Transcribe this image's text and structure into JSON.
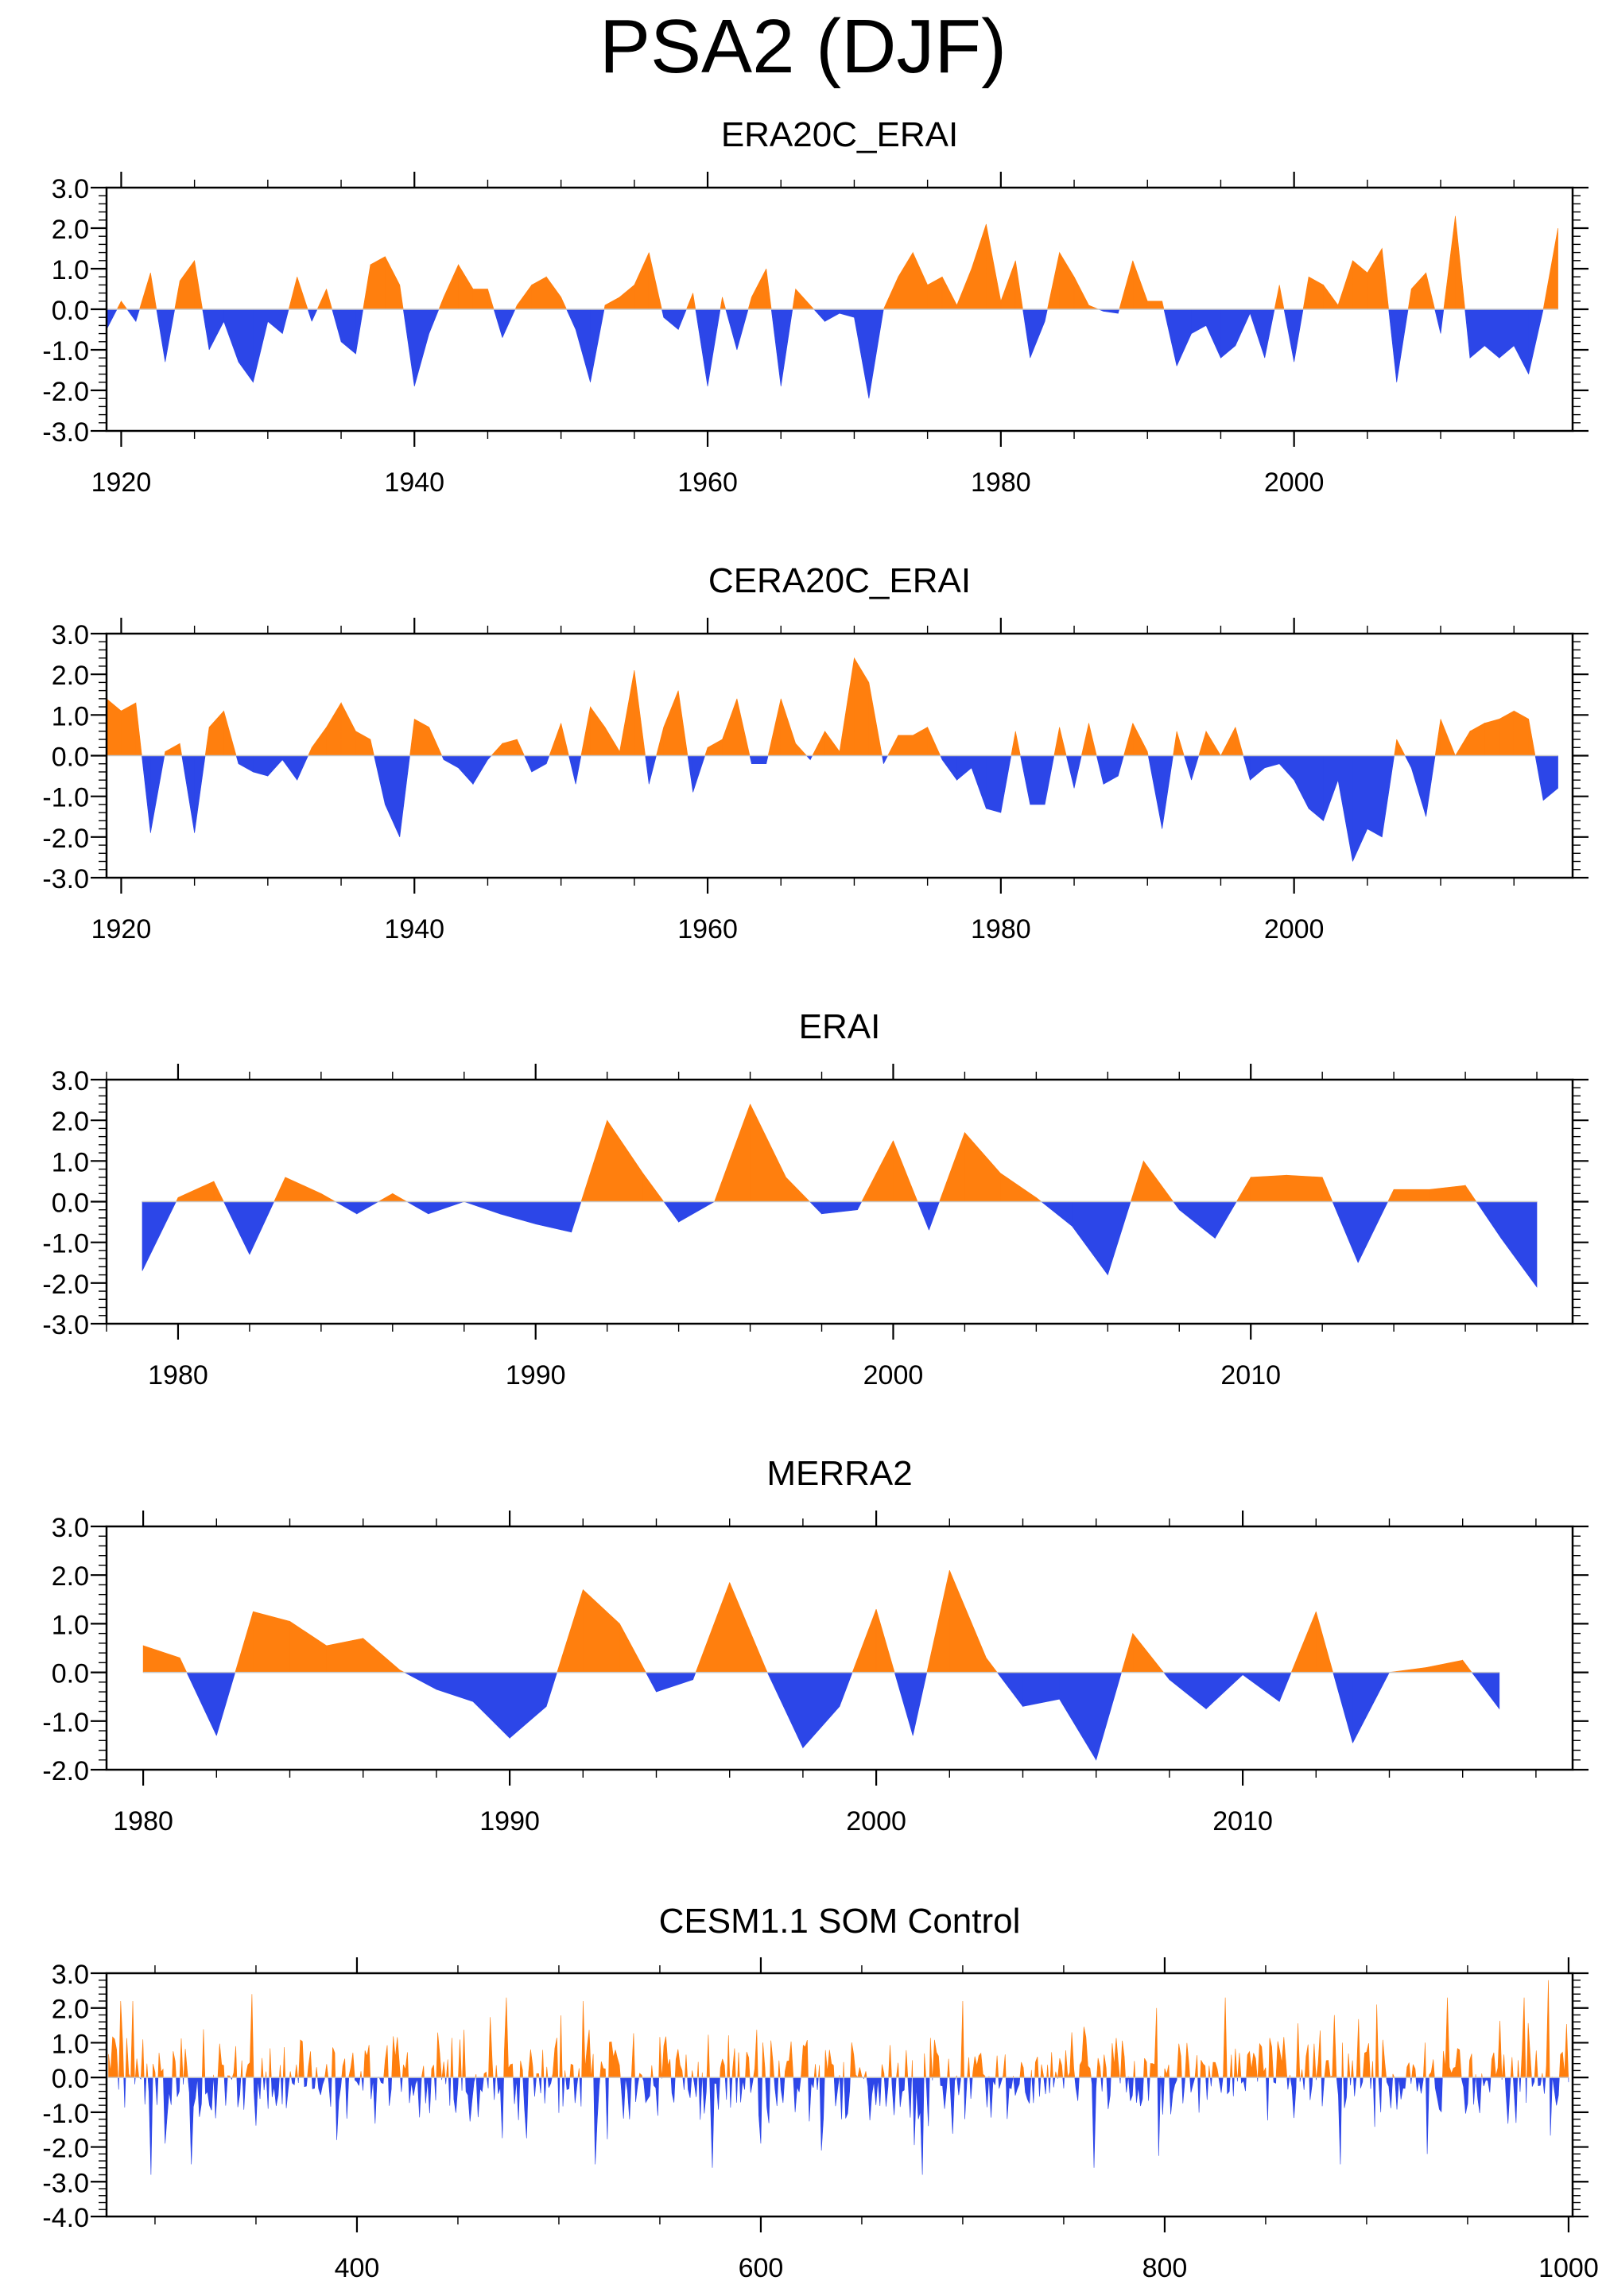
{
  "figure": {
    "title": "PSA2 (DJF)"
  },
  "colors": {
    "positive": "#ff7f0e",
    "negative": "#2c46e8",
    "axis": "#000000"
  },
  "chart_data": [
    {
      "type": "area",
      "title": "ERA20C_ERAI",
      "xlim": [
        1919,
        2019
      ],
      "ylim": [
        -3.0,
        3.0
      ],
      "xticks": [
        1920,
        1940,
        1960,
        1980,
        2000
      ],
      "yticks": [
        -3.0,
        -2.0,
        -1.0,
        0.0,
        1.0,
        2.0,
        3.0
      ],
      "ytick_labels": [
        "-3.0",
        "-2.0",
        "-1.0",
        "0.0",
        "1.0",
        "2.0",
        "3.0"
      ],
      "x": [
        1919,
        1920,
        1921,
        1922,
        1923,
        1924,
        1925,
        1926,
        1927,
        1928,
        1929,
        1930,
        1931,
        1932,
        1933,
        1934,
        1935,
        1936,
        1937,
        1938,
        1939,
        1940,
        1941,
        1942,
        1943,
        1944,
        1945,
        1946,
        1947,
        1948,
        1949,
        1950,
        1951,
        1952,
        1953,
        1954,
        1955,
        1956,
        1957,
        1958,
        1959,
        1960,
        1961,
        1962,
        1963,
        1964,
        1965,
        1966,
        1967,
        1968,
        1969,
        1970,
        1971,
        1972,
        1973,
        1974,
        1975,
        1976,
        1977,
        1978,
        1979,
        1980,
        1981,
        1982,
        1983,
        1984,
        1985,
        1986,
        1987,
        1988,
        1989,
        1990,
        1991,
        1992,
        1993,
        1994,
        1995,
        1996,
        1997,
        1998,
        1999,
        2000,
        2001,
        2002,
        2003,
        2004,
        2005,
        2006,
        2007,
        2008,
        2009,
        2010,
        2011,
        2012,
        2013,
        2014,
        2015,
        2016,
        2017,
        2018
      ],
      "values": [
        -0.5,
        0.2,
        -0.3,
        0.9,
        -1.3,
        0.7,
        1.2,
        -1.0,
        -0.3,
        -1.3,
        -1.8,
        -0.3,
        -0.6,
        0.8,
        -0.3,
        0.5,
        -0.8,
        -1.1,
        1.1,
        1.3,
        0.6,
        -1.9,
        -0.6,
        0.3,
        1.1,
        0.5,
        0.5,
        -0.7,
        0.1,
        0.6,
        0.8,
        0.3,
        -0.5,
        -1.8,
        0.1,
        0.3,
        0.6,
        1.4,
        -0.2,
        -0.5,
        0.4,
        -1.9,
        0.3,
        -1.0,
        0.3,
        1.0,
        -1.9,
        0.5,
        0.1,
        -0.3,
        -0.1,
        -0.2,
        -2.2,
        0.0,
        0.8,
        1.4,
        0.6,
        0.8,
        0.1,
        1.0,
        2.1,
        0.2,
        1.2,
        -1.2,
        -0.3,
        1.4,
        0.8,
        0.1,
        -0.05,
        -0.1,
        1.2,
        0.2,
        0.2,
        -1.4,
        -0.6,
        -0.4,
        -1.2,
        -0.9,
        -0.1,
        -1.2,
        0.6,
        -1.3,
        0.8,
        0.6,
        0.1,
        1.2,
        0.9,
        1.5,
        -1.8,
        0.5,
        0.9,
        -0.6,
        2.3,
        -1.2,
        -0.9,
        -1.2,
        -0.9,
        -1.6,
        0.0,
        2.0
      ]
    },
    {
      "type": "area",
      "title": "CERA20C_ERAI",
      "xlim": [
        1919,
        2019
      ],
      "ylim": [
        -3.0,
        3.0
      ],
      "xticks": [
        1920,
        1940,
        1960,
        1980,
        2000
      ],
      "yticks": [
        -3.0,
        -2.0,
        -1.0,
        0.0,
        1.0,
        2.0,
        3.0
      ],
      "ytick_labels": [
        "-3.0",
        "-2.0",
        "-1.0",
        "0.0",
        "1.0",
        "2.0",
        "3.0"
      ],
      "x": [
        1919,
        1920,
        1921,
        1922,
        1923,
        1924,
        1925,
        1926,
        1927,
        1928,
        1929,
        1930,
        1931,
        1932,
        1933,
        1934,
        1935,
        1936,
        1937,
        1938,
        1939,
        1940,
        1941,
        1942,
        1943,
        1944,
        1945,
        1946,
        1947,
        1948,
        1949,
        1950,
        1951,
        1952,
        1953,
        1954,
        1955,
        1956,
        1957,
        1958,
        1959,
        1960,
        1961,
        1962,
        1963,
        1964,
        1965,
        1966,
        1967,
        1968,
        1969,
        1970,
        1971,
        1972,
        1973,
        1974,
        1975,
        1976,
        1977,
        1978,
        1979,
        1980,
        1981,
        1982,
        1983,
        1984,
        1985,
        1986,
        1987,
        1988,
        1989,
        1990,
        1991,
        1992,
        1993,
        1994,
        1995,
        1996,
        1997,
        1998,
        1999,
        2000,
        2001,
        2002,
        2003,
        2004,
        2005,
        2006,
        2007,
        2008,
        2009,
        2010,
        2011,
        2012,
        2013,
        2014,
        2015,
        2016,
        2017,
        2018
      ],
      "values": [
        1.4,
        1.1,
        1.3,
        -1.9,
        0.1,
        0.3,
        -1.9,
        0.7,
        1.1,
        -0.2,
        -0.4,
        -0.5,
        -0.1,
        -0.6,
        0.2,
        0.7,
        1.3,
        0.6,
        0.4,
        -1.2,
        -2.0,
        0.9,
        0.7,
        -0.1,
        -0.3,
        -0.7,
        -0.1,
        0.3,
        0.4,
        -0.4,
        -0.2,
        0.8,
        -0.7,
        1.2,
        0.7,
        0.1,
        2.1,
        -0.7,
        0.7,
        1.6,
        -0.9,
        0.2,
        0.4,
        1.4,
        -0.2,
        -0.2,
        1.4,
        0.3,
        -0.1,
        0.6,
        0.1,
        2.4,
        1.8,
        -0.2,
        0.5,
        0.5,
        0.7,
        -0.1,
        -0.6,
        -0.3,
        -1.3,
        -1.4,
        0.6,
        -1.2,
        -1.2,
        0.7,
        -0.8,
        0.8,
        -0.7,
        -0.5,
        0.8,
        0.1,
        -1.8,
        0.6,
        -0.6,
        0.6,
        0.0,
        0.7,
        -0.6,
        -0.3,
        -0.2,
        -0.6,
        -1.3,
        -1.6,
        -0.6,
        -2.6,
        -1.8,
        -2.0,
        0.4,
        -0.3,
        -1.5,
        0.9,
        0.0,
        0.6,
        0.8,
        0.9,
        1.1,
        0.9,
        -1.1,
        -0.8
      ]
    },
    {
      "type": "area",
      "title": "ERAI",
      "xlim": [
        1978,
        2019
      ],
      "ylim": [
        -3.0,
        3.0
      ],
      "xticks": [
        1980,
        1990,
        2000,
        2010
      ],
      "yticks": [
        -3.0,
        -2.0,
        -1.0,
        0.0,
        1.0,
        2.0,
        3.0
      ],
      "ytick_labels": [
        "-3.0",
        "-2.0",
        "-1.0",
        "0.0",
        "1.0",
        "2.0",
        "3.0"
      ],
      "x": [
        1979,
        1980,
        1981,
        1982,
        1983,
        1984,
        1985,
        1986,
        1987,
        1988,
        1989,
        1990,
        1991,
        1992,
        1993,
        1994,
        1995,
        1996,
        1997,
        1998,
        1999,
        2000,
        2001,
        2002,
        2003,
        2004,
        2005,
        2006,
        2007,
        2008,
        2009,
        2010,
        2011,
        2012,
        2013,
        2014,
        2015,
        2016,
        2017,
        2018
      ],
      "values": [
        -1.7,
        0.1,
        0.5,
        -1.3,
        0.6,
        0.2,
        -0.3,
        0.2,
        -0.3,
        0.0,
        -0.3,
        -0.55,
        -0.75,
        2.0,
        0.7,
        -0.5,
        0.0,
        2.4,
        0.6,
        -0.3,
        -0.2,
        1.5,
        -0.7,
        1.7,
        0.7,
        0.1,
        -0.6,
        -1.8,
        1.0,
        -0.2,
        -0.9,
        0.6,
        0.65,
        0.6,
        -1.5,
        0.3,
        0.3,
        0.4,
        -0.9,
        -2.1
      ]
    },
    {
      "type": "area",
      "title": "MERRA2",
      "xlim": [
        1979,
        2019
      ],
      "ylim": [
        -2.0,
        3.0
      ],
      "xticks": [
        1980,
        1990,
        2000,
        2010
      ],
      "yticks": [
        -2.0,
        -1.0,
        0.0,
        1.0,
        2.0,
        3.0
      ],
      "ytick_labels": [
        "-2.0",
        "-1.0",
        "0.0",
        "1.0",
        "2.0",
        "3.0"
      ],
      "x": [
        1980,
        1981,
        1982,
        1983,
        1984,
        1985,
        1986,
        1987,
        1988,
        1989,
        1990,
        1991,
        1992,
        1993,
        1994,
        1995,
        1996,
        1997,
        1998,
        1999,
        2000,
        2001,
        2002,
        2003,
        2004,
        2005,
        2006,
        2007,
        2008,
        2009,
        2010,
        2011,
        2012,
        2013,
        2014,
        2015,
        2016,
        2017
      ],
      "values": [
        0.55,
        0.3,
        -1.3,
        1.25,
        1.05,
        0.55,
        0.7,
        0.05,
        -0.35,
        -0.6,
        -1.35,
        -0.7,
        1.7,
        1.0,
        -0.4,
        -0.15,
        1.85,
        0.05,
        -1.55,
        -0.7,
        1.3,
        -1.3,
        2.1,
        0.3,
        -0.7,
        -0.55,
        -1.8,
        0.8,
        -0.15,
        -0.75,
        -0.05,
        -0.6,
        1.25,
        -1.45,
        0.0,
        0.1,
        0.25,
        -0.75
      ]
    },
    {
      "type": "area",
      "title": "CESM1.1 SOM Control",
      "xlim": [
        276,
        1002
      ],
      "ylim": [
        -4.0,
        3.0
      ],
      "xticks": [
        400,
        600,
        800,
        1000
      ],
      "yticks": [
        -4.0,
        -3.0,
        -2.0,
        -1.0,
        0.0,
        1.0,
        2.0,
        3.0
      ],
      "ytick_labels": [
        "-4.0",
        "-3.0",
        "-2.0",
        "-1.0",
        "0.0",
        "1.0",
        "2.0",
        "3.0"
      ],
      "x_start": 277,
      "x_end": 1000,
      "values_summary": "Simulated control run, 724 DJF seasons; dense alternating spikes between about -3.0 and +2.8",
      "peaks": [
        [
          283,
          2.2
        ],
        [
          289,
          2.2
        ],
        [
          298,
          -2.8
        ],
        [
          305,
          -1.9
        ],
        [
          318,
          -2.5
        ],
        [
          348,
          2.4
        ],
        [
          348,
          -2.0
        ],
        [
          390,
          -1.8
        ],
        [
          474,
          2.3
        ],
        [
          512,
          2.2
        ],
        [
          518,
          -2.5
        ],
        [
          576,
          -2.6
        ],
        [
          600,
          -1.9
        ],
        [
          630,
          -2.1
        ],
        [
          680,
          -2.8
        ],
        [
          700,
          2.2
        ],
        [
          765,
          -2.6
        ],
        [
          796,
          2.0
        ],
        [
          830,
          2.3
        ],
        [
          887,
          -2.5
        ],
        [
          905,
          2.1
        ],
        [
          930,
          -2.2
        ],
        [
          940,
          2.3
        ],
        [
          978,
          2.3
        ],
        [
          990,
          2.8
        ]
      ]
    }
  ]
}
